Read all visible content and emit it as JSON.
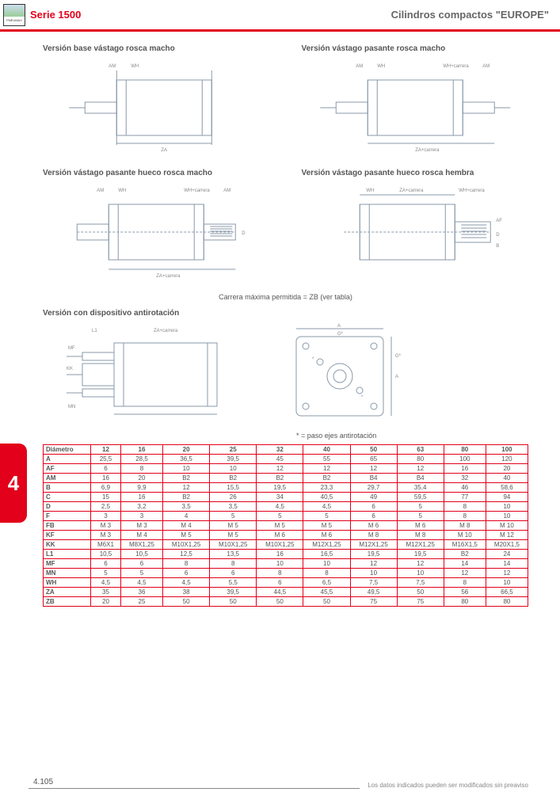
{
  "header": {
    "brand": "PNEUMAX",
    "serie": "Serie 1500",
    "product": "Cilindros compactos \"EUROPE\""
  },
  "sections": {
    "s1": "Versión base vástago rosca macho",
    "s2": "Versión vástago pasante rosca macho",
    "s3": "Versión vástago pasante hueco rosca macho",
    "s4": "Versión vástago pasante hueco rosca hembra",
    "s5": "Versión con dispositivo antirotación"
  },
  "notes": {
    "carrera": "Carrera máxima permitida = ZB (ver tabla)",
    "ejes": "* = paso ejes antirotación"
  },
  "side_tab": "4",
  "footer": {
    "page": "4.105",
    "legal": "Los datos indicados pueden ser modificados sin preaviso"
  },
  "table": {
    "header_label": "Diámetro",
    "diameters": [
      "12",
      "16",
      "20",
      "25",
      "32",
      "40",
      "50",
      "63",
      "80",
      "100"
    ],
    "rows": [
      {
        "k": "A",
        "v": [
          "25,5",
          "28,5",
          "36,5",
          "39,5",
          "45",
          "55",
          "65",
          "80",
          "100",
          "120"
        ]
      },
      {
        "k": "AF",
        "v": [
          "6",
          "8",
          "10",
          "10",
          "12",
          "12",
          "12",
          "12",
          "16",
          "20"
        ]
      },
      {
        "k": "AM",
        "v": [
          "16",
          "20",
          "B2",
          "B2",
          "B2",
          "B2",
          "B4",
          "B4",
          "32",
          "40"
        ]
      },
      {
        "k": "B",
        "v": [
          "6,9",
          "9,9",
          "12",
          "15,5",
          "19,5",
          "23,3",
          "29,7",
          "35,4",
          "46",
          "58,6"
        ]
      },
      {
        "k": "C",
        "v": [
          "15",
          "16",
          "B2",
          "26",
          "34",
          "40,5",
          "49",
          "59,5",
          "77",
          "94"
        ]
      },
      {
        "k": "D",
        "v": [
          "2,5",
          "3,2",
          "3,5",
          "3,5",
          "4,5",
          "4,5",
          "6",
          "5",
          "8",
          "10"
        ]
      },
      {
        "k": "F",
        "v": [
          "3",
          "3",
          "4",
          "5",
          "5",
          "5",
          "6",
          "5",
          "8",
          "10"
        ]
      },
      {
        "k": "FB",
        "v": [
          "M 3",
          "M 3",
          "M 4",
          "M 5",
          "M 5",
          "M 5",
          "M 6",
          "M 6",
          "M 8",
          "M 10"
        ]
      },
      {
        "k": "KF",
        "v": [
          "M 3",
          "M 4",
          "M 5",
          "M 5",
          "M 6",
          "M 6",
          "M 8",
          "M 8",
          "M 10",
          "M 12"
        ]
      },
      {
        "k": "KK",
        "v": [
          "M6X1",
          "M8X1,25",
          "M10X1,25",
          "M10X1,25",
          "M10X1,25",
          "M12X1,25",
          "M12X1,25",
          "M12X1,25",
          "M16X1,5",
          "M20X1,5"
        ]
      },
      {
        "k": "L1",
        "v": [
          "10,5",
          "10,5",
          "12,5",
          "13,5",
          "16",
          "16,5",
          "19,5",
          "19,5",
          "B2",
          "24"
        ]
      },
      {
        "k": "MF",
        "v": [
          "6",
          "6",
          "8",
          "8",
          "10",
          "10",
          "12",
          "12",
          "14",
          "14"
        ]
      },
      {
        "k": "MN",
        "v": [
          "5",
          "5",
          "6",
          "6",
          "8",
          "8",
          "10",
          "10",
          "12",
          "12"
        ]
      },
      {
        "k": "WH",
        "v": [
          "4,5",
          "4,5",
          "4,5",
          "5,5",
          "6",
          "6,5",
          "7,5",
          "7,5",
          "8",
          "10"
        ]
      },
      {
        "k": "ZA",
        "v": [
          "35",
          "36",
          "38",
          "39,5",
          "44,5",
          "45,5",
          "49,5",
          "50",
          "56",
          "66,5"
        ]
      },
      {
        "k": "ZB",
        "v": [
          "20",
          "25",
          "50",
          "50",
          "50",
          "50",
          "75",
          "75",
          "80",
          "80"
        ]
      }
    ]
  },
  "style": {
    "accent": "#e2001a",
    "gray": "#888888",
    "text": "#555555",
    "drawing_stroke": "#8899aa"
  }
}
